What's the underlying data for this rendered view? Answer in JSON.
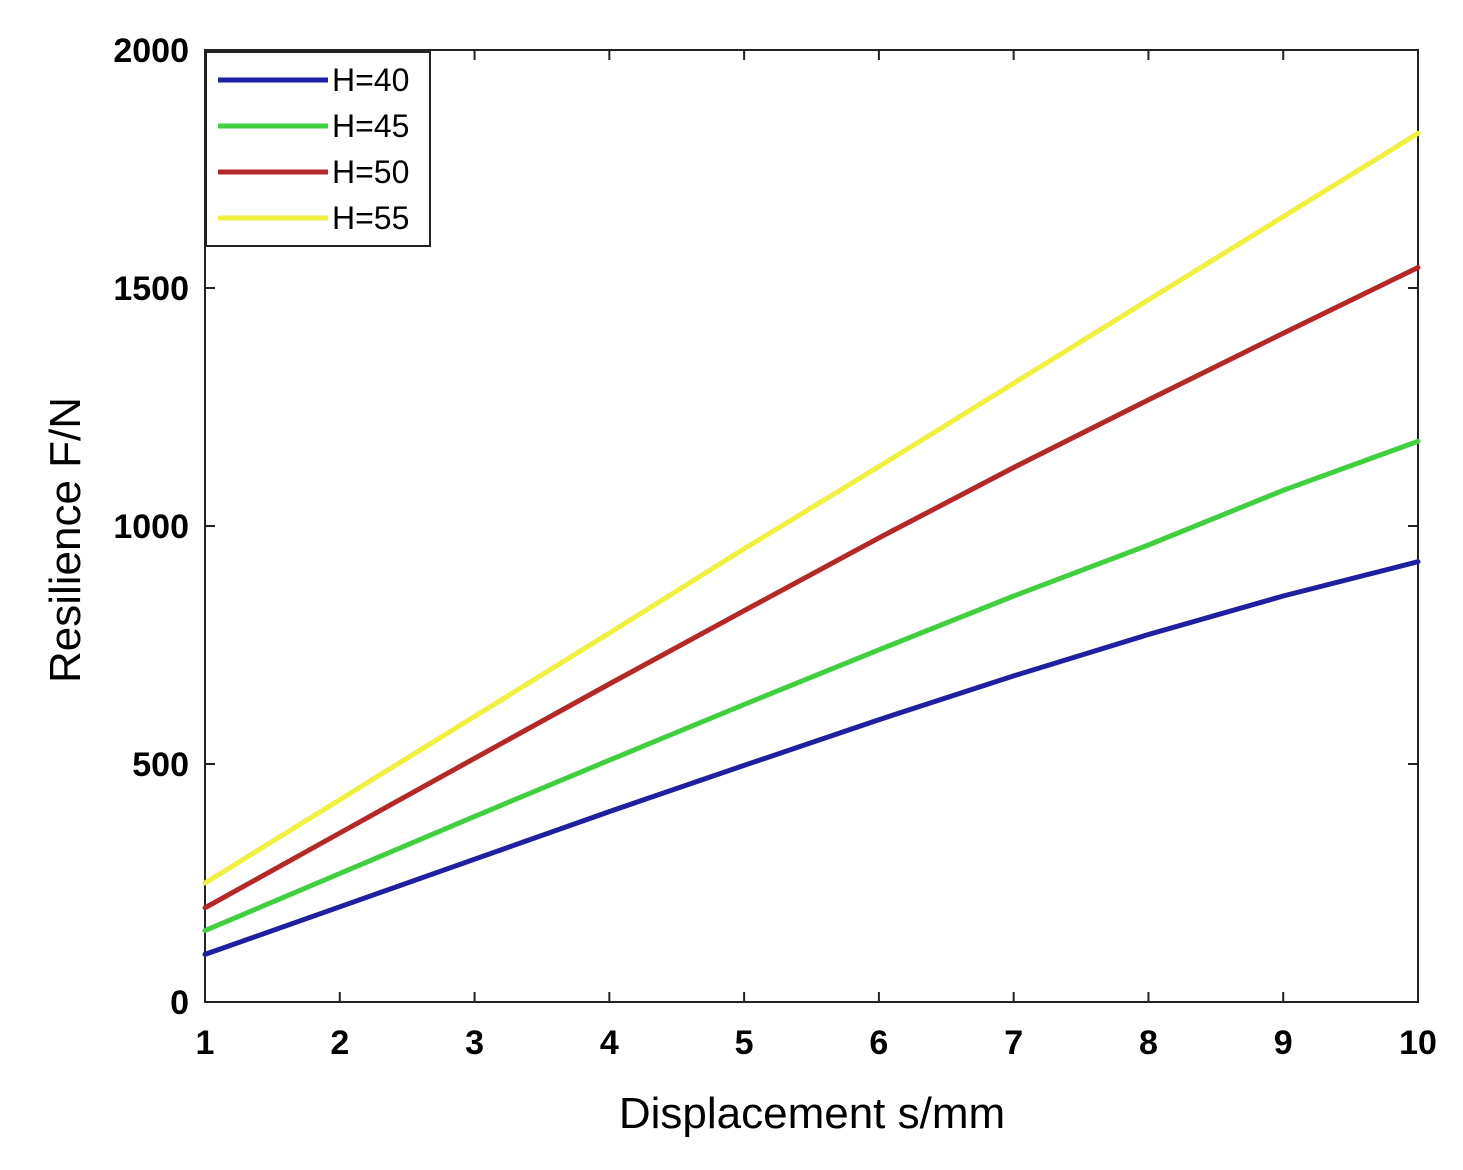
{
  "chart_data": {
    "type": "line",
    "title": "",
    "xlabel": "Displacement s/mm",
    "ylabel": "Resilience F/N",
    "xlim": [
      1,
      10
    ],
    "ylim": [
      0,
      2000
    ],
    "xticks": [
      1,
      2,
      3,
      4,
      5,
      6,
      7,
      8,
      9,
      10
    ],
    "yticks": [
      0,
      500,
      1000,
      1500,
      2000
    ],
    "grid": false,
    "legend_position": "top-left",
    "x": [
      1,
      2,
      3,
      4,
      5,
      6,
      7,
      8,
      9,
      10
    ],
    "series": [
      {
        "name": "H=40",
        "color": "#1f1fa0",
        "values": [
          100,
          200,
          300,
          400,
          497,
          593,
          685,
          772,
          853,
          925
        ]
      },
      {
        "name": "H=45",
        "color": "#3fcf3f",
        "values": [
          150,
          270,
          390,
          508,
          625,
          740,
          853,
          960,
          1075,
          1178
        ]
      },
      {
        "name": "H=50",
        "color": "#b52828",
        "values": [
          198,
          355,
          512,
          668,
          822,
          975,
          1123,
          1265,
          1405,
          1543
        ]
      },
      {
        "name": "H=55",
        "color": "#f0f040",
        "values": [
          250,
          425,
          600,
          775,
          952,
          1125,
          1300,
          1475,
          1650,
          1825
        ]
      }
    ]
  }
}
